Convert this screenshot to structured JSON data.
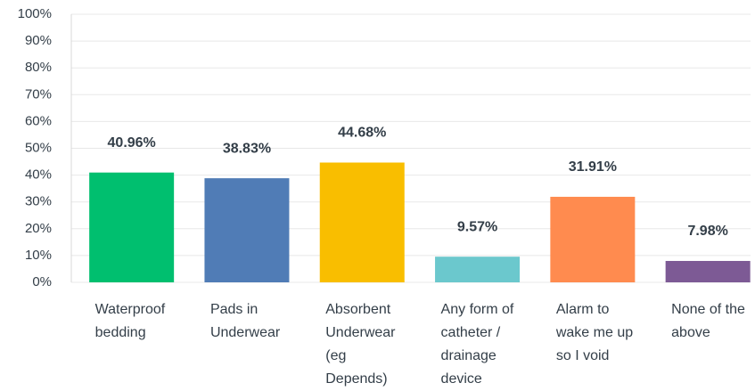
{
  "chart_data": {
    "type": "bar",
    "categories": [
      "Waterproof bedding",
      "Pads in Underwear",
      "Absorbent Underwear (eg Depends)",
      "Any form of catheter / drainage device",
      "Alarm to wake me up so I void",
      "None of the above"
    ],
    "values": [
      40.96,
      38.83,
      44.68,
      9.57,
      31.91,
      7.98
    ],
    "value_labels": [
      "40.96%",
      "38.83%",
      "44.68%",
      "9.57%",
      "31.91%",
      "7.98%"
    ],
    "colors": [
      "#00bf6f",
      "#507cb6",
      "#f9be00",
      "#6bc8cd",
      "#ff8b4f",
      "#7d5a95"
    ],
    "ylim": [
      0,
      100
    ],
    "yticks": [
      {
        "value": 0,
        "label": "0%"
      },
      {
        "value": 10,
        "label": "10%"
      },
      {
        "value": 20,
        "label": "20%"
      },
      {
        "value": 30,
        "label": "30%"
      },
      {
        "value": 40,
        "label": "40%"
      },
      {
        "value": 50,
        "label": "50%"
      },
      {
        "value": 60,
        "label": "60%"
      },
      {
        "value": 70,
        "label": "70%"
      },
      {
        "value": 80,
        "label": "80%"
      },
      {
        "value": 90,
        "label": "90%"
      },
      {
        "value": 100,
        "label": "100%"
      }
    ],
    "grid": true
  }
}
